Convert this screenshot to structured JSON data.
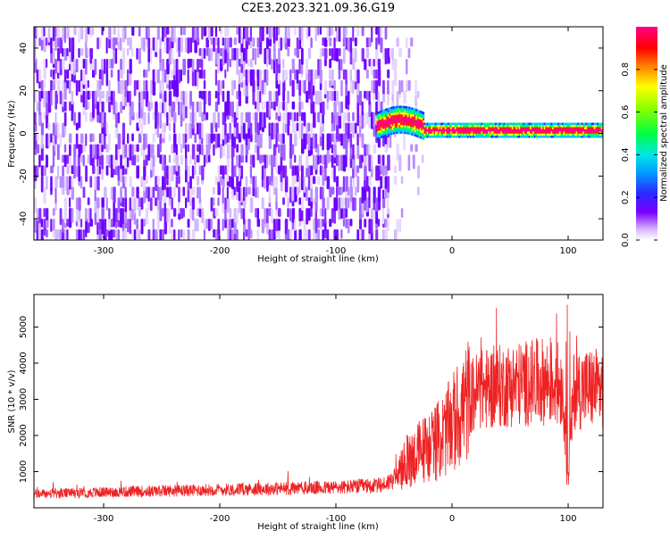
{
  "title": "C2E3.2023.321.09.36.G19",
  "colors": {
    "snr_line": "#ee2222",
    "axis": "#000000",
    "background": "#ffffff"
  },
  "chart_data": [
    {
      "type": "heatmap",
      "xlabel": "Height of straight line (km)",
      "ylabel": "Frequency (Hz)",
      "xlim": [
        -360,
        130
      ],
      "ylim": [
        -50,
        50
      ],
      "xticks": [
        -300,
        -200,
        -100,
        0,
        100
      ],
      "yticks": [
        -40,
        -20,
        0,
        20,
        40
      ],
      "colorbar": {
        "label": "Normalized spectral amplitude",
        "range": [
          0,
          1
        ],
        "ticks": [
          "0.0",
          "0.2",
          "0.4",
          "0.6",
          "0.8"
        ],
        "colormap": "white-purple-blue-cyan-green-yellow-red-magenta"
      },
      "signal_track": {
        "description": "strong narrowband signal near 0 Hz",
        "x_start": -65,
        "x_end": 130,
        "frequency_hz": 1,
        "noise_region_x": [
          -360,
          -55
        ],
        "noise_fade_x": [
          -55,
          -20
        ]
      }
    },
    {
      "type": "line",
      "xlabel": "Height of straight line (km)",
      "ylabel": "SNR (10 * v/v)",
      "xlim": [
        -360,
        130
      ],
      "ylim": [
        0,
        5900
      ],
      "xticks": [
        -300,
        -200,
        -100,
        0,
        100
      ],
      "yticks": [
        1000,
        2000,
        3000,
        4000,
        5000
      ],
      "series": [
        {
          "profile_x": [
            -360,
            -300,
            -200,
            -100,
            -60,
            -50,
            -40,
            -30,
            -20,
            -10,
            0,
            10,
            20,
            30,
            50,
            80,
            95,
            100,
            105,
            130
          ],
          "profile_y": [
            380,
            430,
            500,
            560,
            620,
            800,
            1200,
            1500,
            1700,
            1900,
            2300,
            2800,
            3200,
            3300,
            3400,
            3500,
            3400,
            800,
            3300,
            3300
          ]
        }
      ]
    }
  ]
}
